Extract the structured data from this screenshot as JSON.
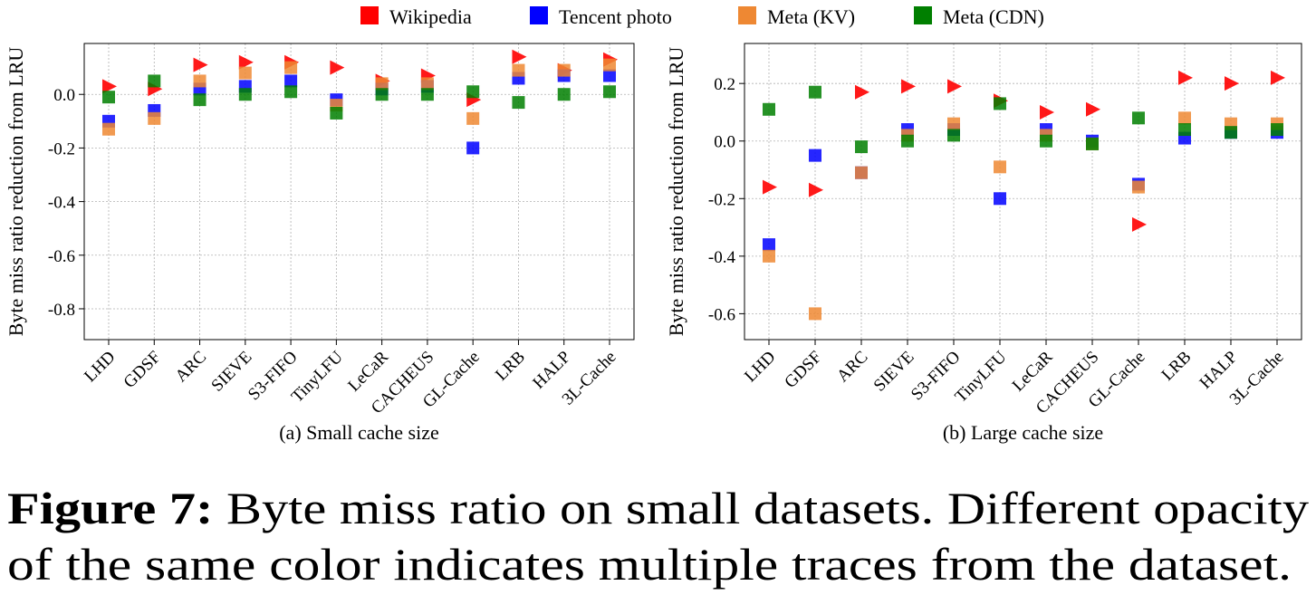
{
  "chart_data": [
    {
      "type": "scatter",
      "x_label": "(a) Small cache size",
      "y_label": "Byte miss ratio reduction from LRU",
      "categories": [
        "LHD",
        "GDSF",
        "ARC",
        "SIEVE",
        "S3-FIFO",
        "TinyLFU",
        "LeCaR",
        "CACHEUS",
        "GL-Cache",
        "LRB",
        "HALP",
        "3L-Cache"
      ],
      "ylim": [
        -0.915,
        0.19
      ],
      "yticks": [
        -0.8,
        -0.6,
        -0.4,
        -0.2,
        {
          "value": 0,
          "label": "0.0"
        }
      ],
      "grid": true,
      "series": [
        {
          "name": "Wikipedia",
          "color": "#ff0000",
          "marker": "triangle",
          "values": [
            0.03,
            0.02,
            0.11,
            0.12,
            0.12,
            0.1,
            0.05,
            0.07,
            -0.02,
            0.14,
            0.09,
            0.13
          ]
        },
        {
          "name": "Tencent photo",
          "color": "#0000ff",
          "marker": "square",
          "values": [
            -0.1,
            -0.06,
            0.02,
            0.03,
            0.05,
            -0.02,
            0.02,
            0.03,
            -0.2,
            0.06,
            0.07,
            0.07
          ]
        },
        {
          "name": "Meta (KV)",
          "color": "#ee8833",
          "marker": "square",
          "values": [
            -0.13,
            -0.09,
            0.05,
            0.08,
            0.1,
            -0.04,
            0.04,
            0.04,
            -0.09,
            0.09,
            0.09,
            0.11
          ]
        },
        {
          "name": "Meta (CDN)",
          "color": "#007f00",
          "marker": "square",
          "values": [
            -0.01,
            0.05,
            -0.02,
            0.0,
            0.01,
            -0.07,
            0.0,
            0.0,
            0.01,
            -0.03,
            0.0,
            0.01
          ]
        }
      ]
    },
    {
      "type": "scatter",
      "x_label": "(b) Large cache size",
      "y_label": "Byte miss ratio reduction from LRU",
      "categories": [
        "LHD",
        "GDSF",
        "ARC",
        "SIEVE",
        "S3-FIFO",
        "TinyLFU",
        "LeCaR",
        "CACHEUS",
        "GL-Cache",
        "LRB",
        "HALP",
        "3L-Cache"
      ],
      "ylim": [
        -0.69,
        0.339
      ],
      "yticks": [
        -0.6,
        -0.4,
        -0.2,
        {
          "value": 0,
          "label": "0.0"
        },
        0.2
      ],
      "grid": true,
      "series": [
        {
          "color": "#ff0000",
          "marker": "triangle",
          "values": [
            -0.16,
            -0.17,
            0.17,
            0.19,
            0.19,
            0.14,
            0.1,
            0.11,
            -0.29,
            0.22,
            0.2,
            0.22
          ]
        },
        {
          "color": "#0000ff",
          "marker": "square",
          "values": [
            -0.36,
            -0.05,
            -0.11,
            0.04,
            0.04,
            -0.2,
            0.04,
            0.0,
            -0.15,
            0.01,
            0.03,
            0.03
          ]
        },
        {
          "color": "#ee8833",
          "marker": "square",
          "values": [
            -0.4,
            -0.6,
            -0.11,
            0.02,
            0.06,
            -0.09,
            0.02,
            -0.01,
            -0.16,
            0.08,
            0.06,
            0.06
          ]
        },
        {
          "color": "#007f00",
          "marker": "square",
          "values": [
            0.11,
            0.17,
            -0.02,
            0.0,
            0.02,
            0.13,
            0.0,
            -0.01,
            0.08,
            0.04,
            0.03,
            0.04
          ]
        }
      ]
    }
  ],
  "caption": {
    "label": "Figure 7:",
    "lines": [
      "Byte miss ratio on small datasets. Different opacity",
      "of the same color indicates multiple traces from the dataset."
    ]
  }
}
